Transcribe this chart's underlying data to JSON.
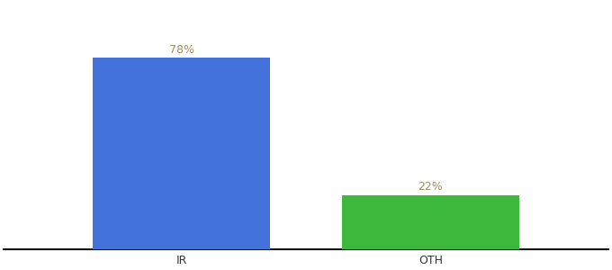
{
  "categories": [
    "IR",
    "OTH"
  ],
  "values": [
    78,
    22
  ],
  "bar_colors": [
    "#4472DB",
    "#3DB83D"
  ],
  "label_color": "#A09060",
  "label_format": [
    "78%",
    "22%"
  ],
  "ylim": [
    0,
    100
  ],
  "background_color": "#ffffff",
  "bar_width": 0.25,
  "label_fontsize": 9,
  "tick_fontsize": 9,
  "axis_line_color": "#111111"
}
